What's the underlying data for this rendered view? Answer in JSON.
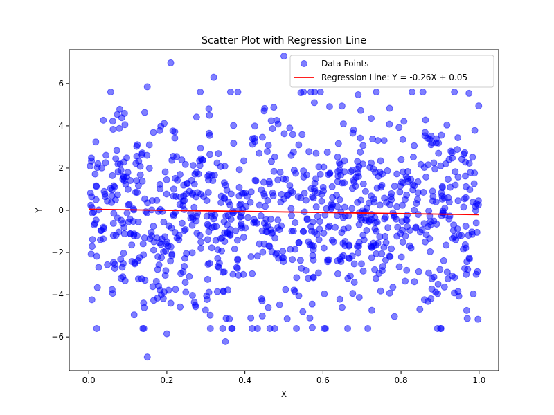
{
  "chart_data": {
    "type": "scatter",
    "title": "Scatter Plot with Regression Line",
    "xlabel": "X",
    "ylabel": "Y",
    "xlim": [
      -0.05,
      1.05
    ],
    "ylim": [
      -7.6,
      7.6
    ],
    "xticks": [
      0.0,
      0.2,
      0.4,
      0.6,
      0.8,
      1.0
    ],
    "xtick_labels": [
      "0.0",
      "0.2",
      "0.4",
      "0.6",
      "0.8",
      "1.0"
    ],
    "yticks": [
      -6,
      -4,
      -2,
      0,
      2,
      4,
      6
    ],
    "ytick_labels": [
      "−6",
      "−4",
      "−2",
      "0",
      "2",
      "4",
      "6"
    ],
    "grid": false,
    "legend": {
      "placement": "top-right",
      "entries": [
        "Data Points",
        "Regression Line: Y = -0.26X + 0.05"
      ]
    },
    "series": [
      {
        "name": "Data Points",
        "kind": "scatter",
        "color": "#0000ff",
        "point_count": 1000,
        "x_range": [
          0.0,
          1.0
        ],
        "y_mean": -0.08,
        "y_sd": 2.4,
        "highlights": [
          [
            0.15,
            -6.95
          ],
          [
            0.35,
            -6.22
          ],
          [
            0.21,
            6.98
          ],
          [
            0.32,
            6.3
          ],
          [
            0.5,
            7.3
          ],
          [
            0.2,
            -5.85
          ],
          [
            0.15,
            5.85
          ]
        ]
      },
      {
        "name": "Regression Line: Y = -0.26X + 0.05",
        "kind": "line",
        "color": "#ff0000",
        "slope": -0.26,
        "intercept": 0.05,
        "x": [
          0.0,
          1.0
        ],
        "y": [
          0.05,
          -0.21
        ]
      }
    ]
  }
}
